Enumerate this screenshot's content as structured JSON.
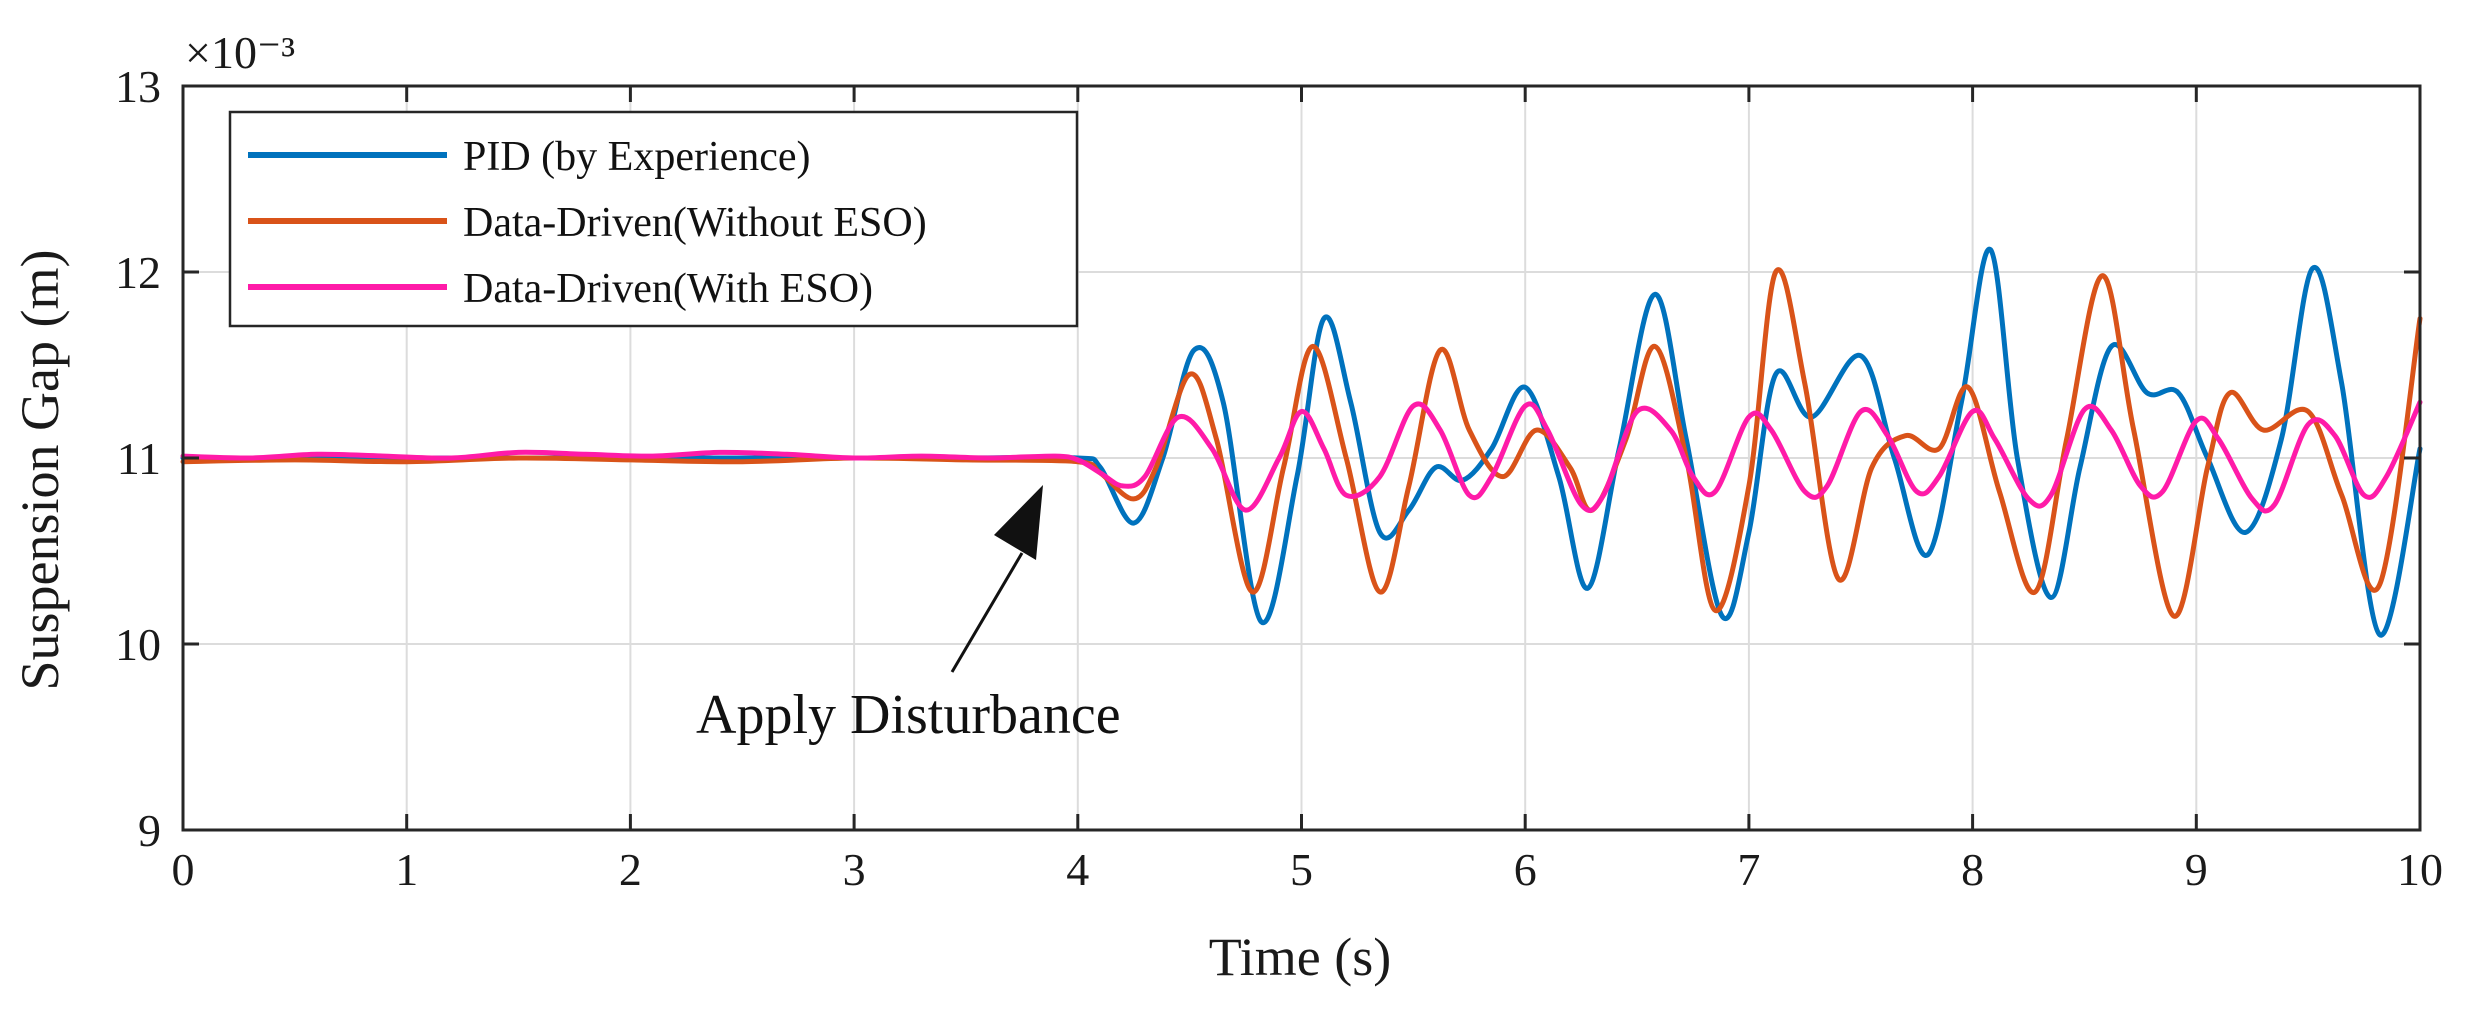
{
  "chart_data": {
    "type": "line",
    "title": "",
    "xlabel": "Time (s)",
    "ylabel": "Suspension Gap (m)",
    "y_multiplier_label": "×10⁻³",
    "xlim": [
      0,
      10
    ],
    "ylim": [
      9,
      13
    ],
    "xticks": [
      "0",
      "1",
      "2",
      "3",
      "4",
      "5",
      "6",
      "7",
      "8",
      "9",
      "10"
    ],
    "yticks": [
      "9",
      "10",
      "11",
      "12",
      "13"
    ],
    "grid": true,
    "legend_position": "top-left",
    "annotation": {
      "text": "Apply Disturbance",
      "target_x": 3.85,
      "target_y": 10.9
    },
    "series": [
      {
        "name": "PID (by Experience)",
        "color": "#0072BD",
        "x": [
          0,
          0.5,
          1,
          1.5,
          2,
          2.5,
          3,
          3.5,
          4.0,
          4.1,
          4.25,
          4.38,
          4.52,
          4.65,
          4.82,
          4.98,
          5.1,
          5.22,
          5.35,
          5.48,
          5.6,
          5.72,
          5.85,
          6.0,
          6.15,
          6.28,
          6.42,
          6.58,
          6.72,
          6.88,
          7.0,
          7.12,
          7.28,
          7.5,
          7.65,
          7.8,
          7.95,
          8.08,
          8.2,
          8.35,
          8.48,
          8.62,
          8.78,
          8.92,
          9.05,
          9.22,
          9.38,
          9.52,
          9.65,
          9.82,
          10.0
        ],
        "y": [
          11.0,
          11.0,
          11.0,
          11.0,
          11.0,
          11.0,
          11.0,
          11.0,
          11.0,
          10.95,
          10.65,
          11.0,
          11.58,
          11.3,
          10.12,
          10.9,
          11.75,
          11.3,
          10.6,
          10.72,
          10.95,
          10.88,
          11.05,
          11.38,
          10.9,
          10.3,
          11.05,
          11.88,
          11.1,
          10.15,
          10.6,
          11.45,
          11.22,
          11.55,
          11.0,
          10.48,
          11.3,
          12.12,
          11.0,
          10.25,
          10.95,
          11.6,
          11.35,
          11.35,
          11.0,
          10.6,
          11.1,
          12.02,
          11.4,
          10.05,
          11.05
        ]
      },
      {
        "name": "Data-Driven(Without ESO)",
        "color": "#D95319",
        "x": [
          0,
          0.5,
          1,
          1.5,
          2,
          2.5,
          3,
          3.5,
          4.0,
          4.1,
          4.25,
          4.35,
          4.5,
          4.62,
          4.78,
          4.92,
          5.05,
          5.2,
          5.35,
          5.48,
          5.62,
          5.75,
          5.9,
          6.05,
          6.2,
          6.3,
          6.45,
          6.58,
          6.72,
          6.85,
          7.0,
          7.12,
          7.25,
          7.4,
          7.55,
          7.7,
          7.85,
          7.98,
          8.12,
          8.28,
          8.42,
          8.58,
          8.72,
          8.9,
          9.05,
          9.15,
          9.3,
          9.5,
          9.65,
          9.82,
          10.0
        ],
        "y": [
          10.98,
          10.99,
          10.98,
          11.0,
          10.99,
          10.98,
          11.0,
          10.99,
          10.98,
          10.92,
          10.78,
          10.95,
          11.45,
          11.1,
          10.28,
          10.95,
          11.6,
          11.0,
          10.28,
          10.85,
          11.58,
          11.15,
          10.9,
          11.15,
          10.95,
          10.72,
          11.1,
          11.6,
          11.0,
          10.18,
          10.85,
          12.0,
          11.4,
          10.35,
          10.95,
          11.12,
          11.05,
          11.38,
          10.82,
          10.28,
          11.1,
          11.98,
          11.15,
          10.15,
          10.95,
          11.35,
          11.15,
          11.25,
          10.8,
          10.32,
          11.75
        ]
      },
      {
        "name": "Data-Driven(With ESO)",
        "color": "#FF1BA8",
        "x": [
          0,
          0.3,
          0.6,
          0.9,
          1.2,
          1.5,
          1.8,
          2.1,
          2.4,
          2.7,
          3.0,
          3.3,
          3.6,
          3.9,
          4.0,
          4.1,
          4.2,
          4.3,
          4.45,
          4.6,
          4.75,
          4.9,
          5.0,
          5.1,
          5.2,
          5.35,
          5.5,
          5.62,
          5.75,
          5.85,
          6.0,
          6.1,
          6.25,
          6.35,
          6.5,
          6.65,
          6.75,
          6.85,
          7.0,
          7.1,
          7.25,
          7.35,
          7.5,
          7.62,
          7.75,
          7.85,
          8.0,
          8.1,
          8.25,
          8.35,
          8.5,
          8.62,
          8.75,
          8.85,
          9.0,
          9.1,
          9.25,
          9.35,
          9.5,
          9.62,
          9.75,
          9.85,
          10.0
        ],
        "y": [
          11.01,
          11.0,
          11.02,
          11.01,
          11.0,
          11.03,
          11.02,
          11.01,
          11.03,
          11.02,
          11.0,
          11.01,
          11.0,
          11.01,
          10.99,
          10.92,
          10.85,
          10.9,
          11.22,
          11.05,
          10.72,
          11.0,
          11.25,
          11.05,
          10.8,
          10.9,
          11.28,
          11.15,
          10.8,
          10.9,
          11.28,
          11.15,
          10.75,
          10.8,
          11.25,
          11.15,
          10.9,
          10.82,
          11.22,
          11.15,
          10.82,
          10.85,
          11.25,
          11.12,
          10.82,
          10.9,
          11.25,
          11.1,
          10.78,
          10.8,
          11.26,
          11.15,
          10.85,
          10.82,
          11.2,
          11.1,
          10.78,
          10.75,
          11.18,
          11.12,
          10.8,
          10.9,
          11.3
        ]
      }
    ]
  }
}
